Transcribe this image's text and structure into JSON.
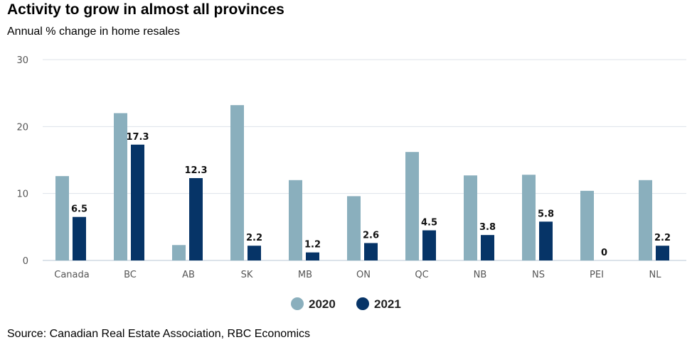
{
  "title": "Activity to grow in almost all provinces",
  "subtitle": "Annual % change in home resales",
  "source": "Source: Canadian Real Estate Association, RBC Economics",
  "colors": {
    "2020": "#8aafbd",
    "2021": "#063467",
    "grid": "#dde3ea",
    "axis": "#b9c7d6"
  },
  "chart_data": {
    "type": "bar",
    "title": "Activity to grow in almost all provinces",
    "subtitle": "Annual % change in home resales",
    "categories": [
      "Canada",
      "BC",
      "AB",
      "SK",
      "MB",
      "ON",
      "QC",
      "NB",
      "NS",
      "PEI",
      "NL"
    ],
    "series": [
      {
        "name": "2020",
        "values": [
          12.6,
          22.0,
          2.3,
          23.2,
          12.0,
          9.6,
          16.2,
          12.7,
          12.8,
          10.4,
          12.0
        ],
        "labels": null
      },
      {
        "name": "2021",
        "values": [
          6.5,
          17.3,
          12.3,
          2.2,
          1.2,
          2.6,
          4.5,
          3.8,
          5.8,
          0,
          2.2
        ],
        "labels": [
          "6.5",
          "17.3",
          "12.3",
          "2.2",
          "1.2",
          "2.6",
          "4.5",
          "3.8",
          "5.8",
          "0",
          "2.2"
        ]
      }
    ],
    "yticks": [
      "0",
      "10",
      "20",
      "30"
    ],
    "ylim": [
      0,
      30
    ],
    "grid": true,
    "legend": "bottom-center"
  }
}
